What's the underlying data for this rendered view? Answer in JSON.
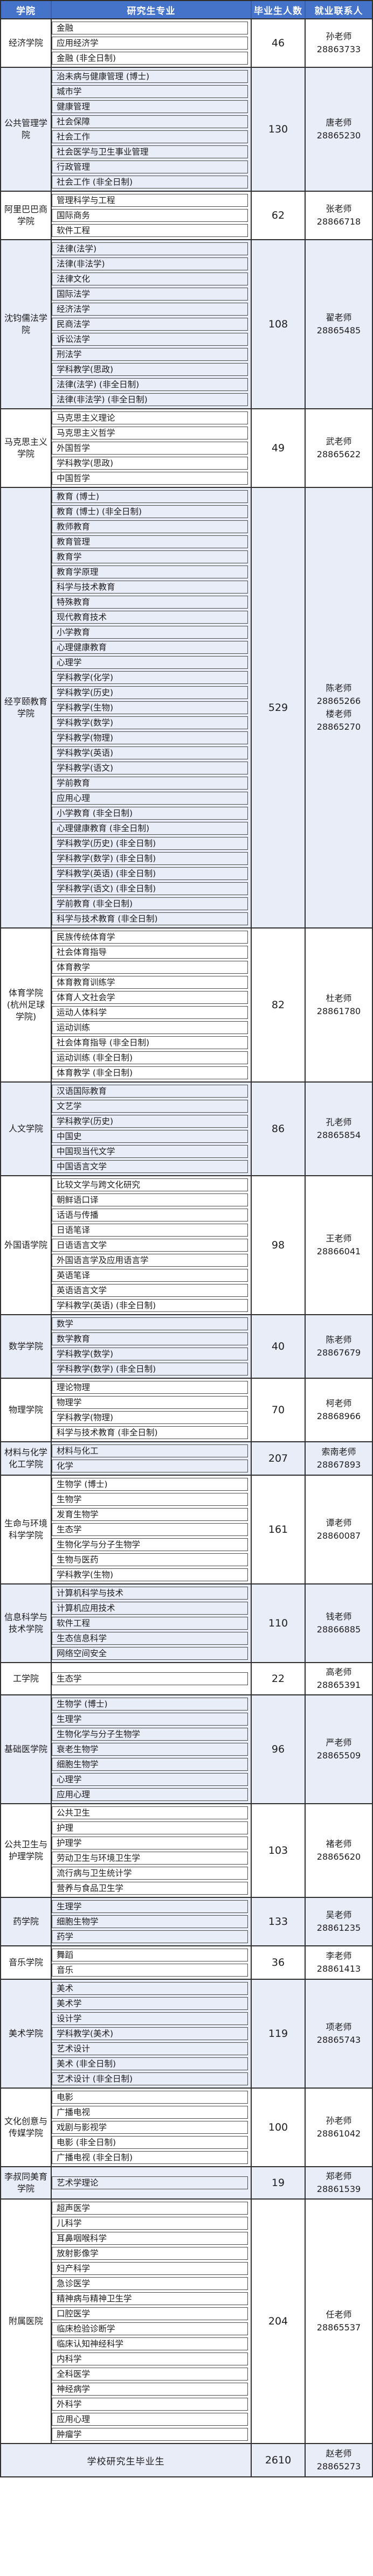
{
  "colors": {
    "header_bg": "#4573C9",
    "header_text": "#FFFFFF",
    "tint_row_bg": "#E9EDF8",
    "white_row_bg": "#FFFFFF",
    "border": "#2F2F2F",
    "text": "#1D1D1F"
  },
  "header": {
    "columns": [
      "学院",
      "研究生专业",
      "毕业生人数",
      "就业联系人"
    ]
  },
  "colleges": [
    {
      "name": "经济学院",
      "majors": [
        "金融",
        "应用经济学",
        "金融 (非全日制)"
      ],
      "count": 46,
      "contacts": [
        {
          "name": "孙老师",
          "phone": "28863733"
        }
      ]
    },
    {
      "name": "公共管理学院",
      "majors": [
        "治未病与健康管理 (博士)",
        "城市学",
        "健康管理",
        "社会保障",
        "社会工作",
        "社会医学与卫生事业管理",
        "行政管理",
        "社会工作 (非全日制)"
      ],
      "count": 130,
      "contacts": [
        {
          "name": "唐老师",
          "phone": "28865230"
        }
      ]
    },
    {
      "name": "阿里巴巴商学院",
      "majors": [
        "管理科学与工程",
        "国际商务",
        "软件工程"
      ],
      "count": 62,
      "contacts": [
        {
          "name": "张老师",
          "phone": "28866718"
        }
      ]
    },
    {
      "name": "沈钧儒法学院",
      "majors": [
        "法律(法学)",
        "法律(非法学)",
        "法律文化",
        "国际法学",
        "经济法学",
        "民商法学",
        "诉讼法学",
        "刑法学",
        "学科教学(思政)",
        "法律(法学) (非全日制)",
        "法律(非法学) (非全日制)"
      ],
      "count": 108,
      "contacts": [
        {
          "name": "翟老师",
          "phone": "28865485"
        }
      ]
    },
    {
      "name": "马克思主义学院",
      "majors": [
        "马克思主义理论",
        "马克思主义哲学",
        "外国哲学",
        "学科教学(思政)",
        "中国哲学"
      ],
      "count": 49,
      "contacts": [
        {
          "name": "武老师",
          "phone": "28865622"
        }
      ]
    },
    {
      "name": "经亨颐教育学院",
      "majors": [
        "教育 (博士)",
        "教育 (博士) (非全日制)",
        "教师教育",
        "教育管理",
        "教育学",
        "教育学原理",
        "科学与技术教育",
        "特殊教育",
        "现代教育技术",
        "小学教育",
        "心理健康教育",
        "心理学",
        "学科教学(化学)",
        "学科教学(历史)",
        "学科教学(生物)",
        "学科教学(数学)",
        "学科教学(物理)",
        "学科教学(英语)",
        "学科教学(语文)",
        "学前教育",
        "应用心理",
        "小学教育 (非全日制)",
        "心理健康教育 (非全日制)",
        "学科教学(历史) (非全日制)",
        "学科教学(数学) (非全日制)",
        "学科教学(英语) (非全日制)",
        "学科教学(语文) (非全日制)",
        "学前教育 (非全日制)",
        "科学与技术教育 (非全日制)"
      ],
      "count": 529,
      "contacts": [
        {
          "name": "陈老师",
          "phone": "28865266"
        },
        {
          "name": "楼老师",
          "phone": "28865270"
        }
      ]
    },
    {
      "name": "体育学院(杭州足球学院)",
      "majors": [
        "民族传统体育学",
        "社会体育指导",
        "体育教学",
        "体育教育训练学",
        "体育人文社会学",
        "运动人体科学",
        "运动训练",
        "社会体育指导 (非全日制)",
        "运动训练 (非全日制)",
        "体育教学 (非全日制)"
      ],
      "count": 82,
      "contacts": [
        {
          "name": "杜老师",
          "phone": "28861780"
        }
      ]
    },
    {
      "name": "人文学院",
      "majors": [
        "汉语国际教育",
        "文艺学",
        "学科教学(历史)",
        "中国史",
        "中国现当代文学",
        "中国语言文学"
      ],
      "count": 86,
      "contacts": [
        {
          "name": "孔老师",
          "phone": "28865854"
        }
      ]
    },
    {
      "name": "外国语学院",
      "majors": [
        "比较文学与跨文化研究",
        "朝鲜语口译",
        "话语与传播",
        "日语笔译",
        "日语语言文学",
        "外国语言学及应用语言学",
        "英语笔译",
        "英语语言文学",
        "学科教学(英语) (非全日制)"
      ],
      "count": 98,
      "contacts": [
        {
          "name": "王老师",
          "phone": "28866041"
        }
      ]
    },
    {
      "name": "数学学院",
      "majors": [
        "数学",
        "数学教育",
        "学科教学(数学)",
        "学科教学(数学) (非全日制)"
      ],
      "count": 40,
      "contacts": [
        {
          "name": "陈老师",
          "phone": "28867679"
        }
      ]
    },
    {
      "name": "物理学院",
      "majors": [
        "理论物理",
        "物理学",
        "学科教学(物理)",
        "科学与技术教育 (非全日制)"
      ],
      "count": 70,
      "contacts": [
        {
          "name": "柯老师",
          "phone": "28868966"
        }
      ]
    },
    {
      "name": "材料与化学化工学院",
      "majors": [
        "材料与化工",
        "化学"
      ],
      "count": 207,
      "contacts": [
        {
          "name": "索南老师",
          "phone": "28867893"
        }
      ]
    },
    {
      "name": "生命与环境科学学院",
      "majors": [
        "生物学 (博士)",
        "生物学",
        "发育生物学",
        "生态学",
        "生物化学与分子生物学",
        "生物与医药",
        "学科教学(生物)"
      ],
      "count": 161,
      "contacts": [
        {
          "name": "谭老师",
          "phone": "28860087"
        }
      ]
    },
    {
      "name": "信息科学与技术学院",
      "majors": [
        "计算机科学与技术",
        "计算机应用技术",
        "软件工程",
        "生态信息科学",
        "网络空间安全"
      ],
      "count": 110,
      "contacts": [
        {
          "name": "钱老师",
          "phone": "28866885"
        }
      ]
    },
    {
      "name": "工学院",
      "majors": [
        "生态学"
      ],
      "count": 22,
      "contacts": [
        {
          "name": "高老师",
          "phone": "28865391"
        }
      ]
    },
    {
      "name": "基础医学院",
      "majors": [
        "生物学 (博士)",
        "生理学",
        "生物化学与分子生物学",
        "衰老生物学",
        "细胞生物学",
        "心理学",
        "应用心理"
      ],
      "count": 96,
      "contacts": [
        {
          "name": "严老师",
          "phone": "28865509"
        }
      ]
    },
    {
      "name": "公共卫生与护理学院",
      "majors": [
        "公共卫生",
        "护理",
        "护理学",
        "劳动卫生与环境卫生学",
        "流行病与卫生统计学",
        "营养与食品卫生学"
      ],
      "count": 103,
      "contacts": [
        {
          "name": "褚老师",
          "phone": "28865620"
        }
      ]
    },
    {
      "name": "药学院",
      "majors": [
        "生理学",
        "细胞生物学",
        "药学"
      ],
      "count": 133,
      "contacts": [
        {
          "name": "吴老师",
          "phone": "28861235"
        }
      ]
    },
    {
      "name": "音乐学院",
      "majors": [
        "舞蹈",
        "音乐"
      ],
      "count": 36,
      "contacts": [
        {
          "name": "李老师",
          "phone": "28861413"
        }
      ]
    },
    {
      "name": "美术学院",
      "majors": [
        "美术",
        "美术学",
        "设计学",
        "学科教学(美术)",
        "艺术设计",
        "美术 (非全日制)",
        "艺术设计 (非全日制)"
      ],
      "count": 119,
      "contacts": [
        {
          "name": "项老师",
          "phone": "28865743"
        }
      ]
    },
    {
      "name": "文化创意与传媒学院",
      "majors": [
        "电影",
        "广播电视",
        "戏剧与影视学",
        "电影 (非全日制)",
        "广播电视 (非全日制)"
      ],
      "count": 100,
      "contacts": [
        {
          "name": "孙老师",
          "phone": "28861042"
        }
      ]
    },
    {
      "name": "李叔同美育学院",
      "majors": [
        "艺术学理论"
      ],
      "count": 19,
      "contacts": [
        {
          "name": "郑老师",
          "phone": "28861539"
        }
      ]
    },
    {
      "name": "附属医院",
      "majors": [
        "超声医学",
        "儿科学",
        "耳鼻咽喉科学",
        "放射影像学",
        "妇产科学",
        "急诊医学",
        "精神病与精神卫生学",
        "口腔医学",
        "临床检验诊断学",
        "临床认知神经科学",
        "内科学",
        "全科医学",
        "神经病学",
        "外科学",
        "应用心理",
        "肿瘤学"
      ],
      "count": 204,
      "contacts": [
        {
          "name": "任老师",
          "phone": "28865537"
        }
      ]
    }
  ],
  "footer": {
    "label": "学校研究生毕业生",
    "count": 2610,
    "contact": {
      "name": "赵老师",
      "phone": "28865273"
    }
  }
}
